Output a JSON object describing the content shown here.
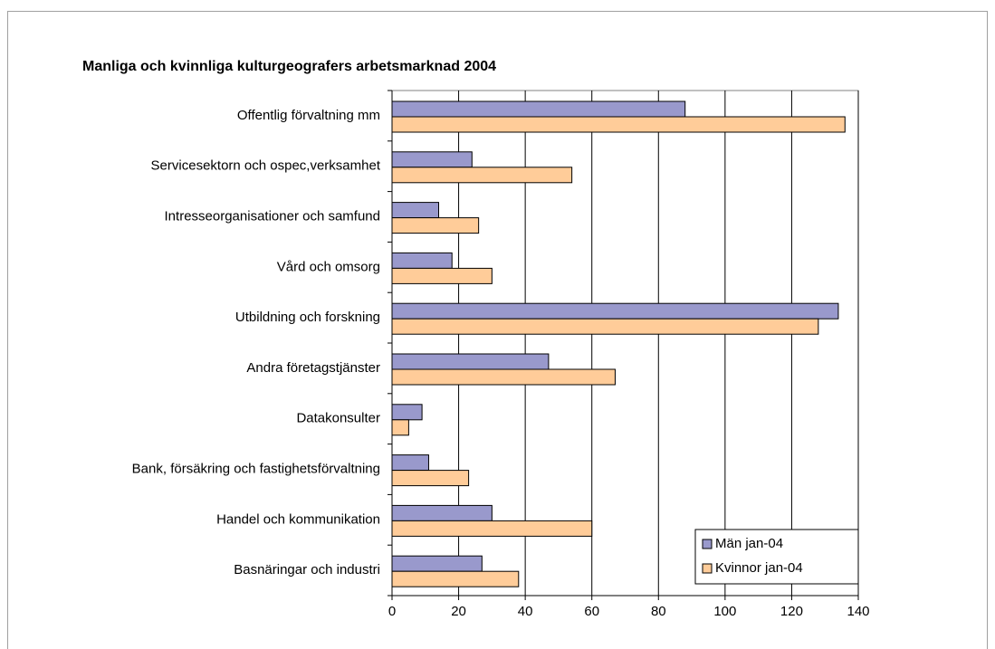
{
  "chart_data": {
    "type": "bar",
    "orientation": "horizontal",
    "title": "Manliga och kvinnliga kulturgeografers arbetsmarknad 2004",
    "categories": [
      "Offentlig förvaltning mm",
      "Servicesektorn och ospec,verksamhet",
      "Intresseorganisationer och samfund",
      "Vård och omsorg",
      "Utbildning och forskning",
      "Andra företagstjänster",
      "Datakonsulter",
      "Bank, försäkring och fastighetsförvaltning",
      "Handel och kommunikation",
      "Basnäringar och industri"
    ],
    "series": [
      {
        "name": "Män jan-04",
        "color": "#9999cc",
        "values": [
          88,
          24,
          14,
          18,
          134,
          47,
          9,
          11,
          30,
          27
        ]
      },
      {
        "name": "Kvinnor jan-04",
        "color": "#ffcc99",
        "values": [
          136,
          54,
          26,
          30,
          128,
          67,
          5,
          23,
          60,
          38
        ]
      }
    ],
    "xlim": [
      0,
      140
    ],
    "xticks": [
      0,
      20,
      40,
      60,
      80,
      100,
      120,
      140
    ],
    "grid": true,
    "legend": "lower right"
  }
}
